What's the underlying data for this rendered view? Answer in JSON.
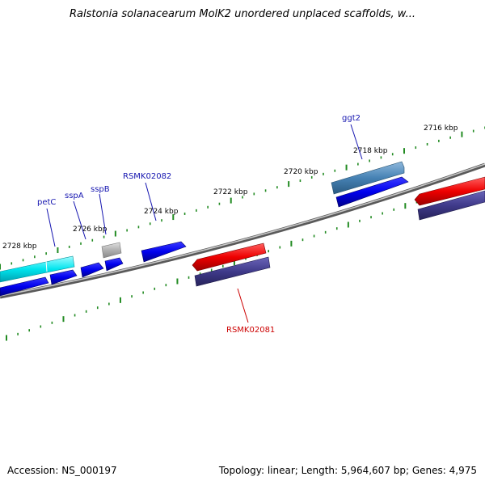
{
  "title": "Ralstonia solanacearum MolK2 unordered unplaced scaffolds, w...",
  "footer": {
    "accession": "Accession: NS_000197",
    "topology": "Topology: linear; Length: 5,964,607 bp; Genes: 4,975"
  },
  "colors": {
    "backbone": "#808080",
    "tick": "#228b22",
    "forward_gene": "#0000ee",
    "forward_feature": "#00e5ee",
    "gene_label": "#1515b0",
    "reverse_gene": "#ee0000",
    "reverse_cds": "#3f3a8a",
    "reverse_label": "#cc0000",
    "pseudo_gene": "#b0b0b0",
    "ggt2_feature": "#4682b4"
  },
  "scale_labels": [
    "2716 kbp",
    "2718 kbp",
    "2720 kbp",
    "2722 kbp",
    "2724 kbp",
    "2726 kbp",
    "2728 kbp"
  ],
  "gene_labels": {
    "ggt2": "ggt2",
    "rsmk02082": "RSMK02082",
    "sspb": "sspB",
    "sspa": "sspA",
    "petc": "petC",
    "rsmk02081": "RSMK02081"
  }
}
